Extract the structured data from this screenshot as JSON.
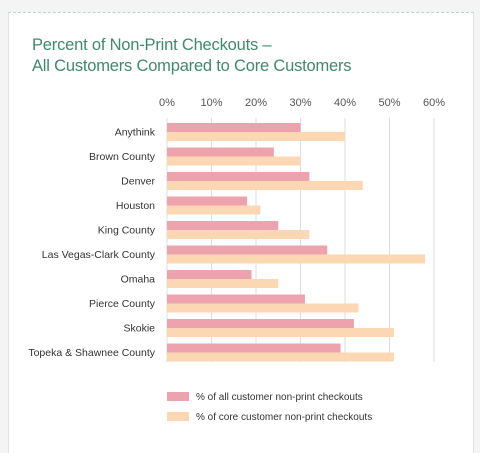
{
  "chart_data": {
    "type": "bar",
    "orientation": "horizontal",
    "title_line1": "Percent of Non-Print Checkouts –",
    "title_line2": "All Customers Compared to Core Customers",
    "xlim": [
      0,
      60
    ],
    "ticks": [
      "0%",
      "10%",
      "20%",
      "30%",
      "40%",
      "50%",
      "60%"
    ],
    "tick_values": [
      0,
      10,
      20,
      30,
      40,
      50,
      60
    ],
    "grid": true,
    "legend_position": "bottom-left",
    "categories": [
      "Anythink",
      "Brown County",
      "Denver",
      "Houston",
      "King County",
      "Las Vegas-Clark County",
      "Omaha",
      "Pierce County",
      "Skokie",
      "Topeka & Shawnee County"
    ],
    "series": [
      {
        "name": "% of all customer non-print checkouts",
        "color": "#eda3ae",
        "values": [
          30,
          24,
          32,
          18,
          25,
          36,
          19,
          31,
          42,
          39
        ]
      },
      {
        "name": "% of core customer non-print checkouts",
        "color": "#fbd8b3",
        "values": [
          40,
          30,
          44,
          21,
          32,
          58,
          25,
          43,
          51,
          51
        ]
      }
    ]
  }
}
